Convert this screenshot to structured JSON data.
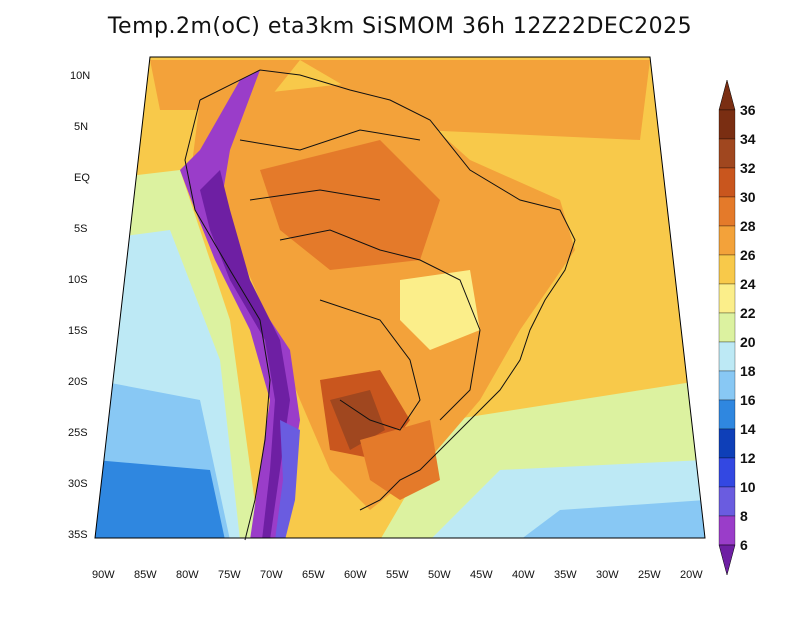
{
  "map": {
    "title": "Temp.2m(oC) eta3km SiSMOM 36h 12Z22DEC2025",
    "lat_labels": [
      "10N",
      "5N",
      "EQ",
      "5S",
      "10S",
      "15S",
      "20S",
      "25S",
      "30S",
      "35S"
    ],
    "lon_labels": [
      "90W",
      "85W",
      "80W",
      "75W",
      "70W",
      "65W",
      "60W",
      "55W",
      "50W",
      "45W",
      "40W",
      "35W",
      "30W",
      "25W",
      "20W"
    ],
    "colorbar": {
      "labels": [
        "36",
        "34",
        "32",
        "30",
        "28",
        "26",
        "24",
        "22",
        "20",
        "18",
        "16",
        "14",
        "12",
        "10",
        "8",
        "6"
      ],
      "colors": [
        "#7a2e12",
        "#a0471f",
        "#c9561e",
        "#e47a2a",
        "#f3a23a",
        "#f8c94a",
        "#fbee8a",
        "#dcf2a0",
        "#bde9f5",
        "#88c8f4",
        "#2f87e0",
        "#0e3fb8",
        "#3348e2",
        "#6a5ce0",
        "#9a3dc9",
        "#6e1fa3"
      ]
    }
  }
}
